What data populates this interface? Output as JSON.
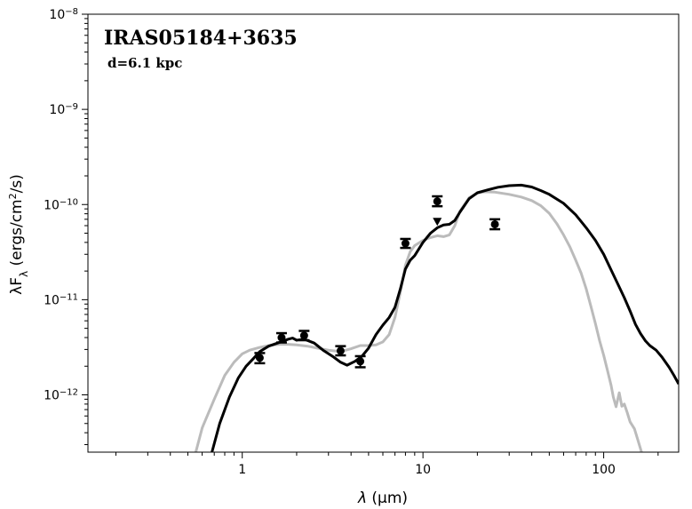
{
  "chart_data": {
    "type": "scatter",
    "title": "",
    "annotations": {
      "source_name": "IRAS05184+3635",
      "distance": "d=6.1 kpc"
    },
    "xlabel": {
      "prefix": "λ",
      "units": "(μm)"
    },
    "ylabel": {
      "prefix": "λF",
      "subscript": "λ",
      "units_open": "(ergs/cm",
      "units_sup": "2",
      "units_close": "/s)"
    },
    "xscale": "log",
    "yscale": "log",
    "xlim": [
      0.14,
      260
    ],
    "ylim": [
      2.5e-13,
      1e-08
    ],
    "x_ticks": [
      {
        "value": 1,
        "label": "1"
      },
      {
        "value": 10,
        "label": "10"
      },
      {
        "value": 100,
        "label": "100"
      }
    ],
    "y_ticks": [
      {
        "value": 1e-08,
        "base": "10",
        "exp": "−8"
      },
      {
        "value": 1e-09,
        "base": "10",
        "exp": "−9"
      },
      {
        "value": 1e-10,
        "base": "10",
        "exp": "−10"
      },
      {
        "value": 1e-11,
        "base": "10",
        "exp": "−11"
      },
      {
        "value": 1e-12,
        "base": "10",
        "exp": "−12"
      }
    ],
    "grid": false,
    "colors": {
      "best_fit": "#000000",
      "other_fit": "#bbbbbb",
      "points": "#000000"
    },
    "series": [
      {
        "kind": "line",
        "color": "#bbbbbb",
        "points": [
          [
            0.55,
            2.4e-13
          ],
          [
            0.6,
            4.5e-13
          ],
          [
            0.7,
            9e-13
          ],
          [
            0.8,
            1.6e-12
          ],
          [
            0.9,
            2.2e-12
          ],
          [
            1.0,
            2.7e-12
          ],
          [
            1.1,
            2.95e-12
          ],
          [
            1.25,
            3.15e-12
          ],
          [
            1.4,
            3.3e-12
          ],
          [
            1.6,
            3.4e-12
          ],
          [
            1.8,
            3.4e-12
          ],
          [
            2.0,
            3.35e-12
          ],
          [
            2.3,
            3.25e-12
          ],
          [
            2.6,
            3.1e-12
          ],
          [
            3.0,
            2.95e-12
          ],
          [
            3.5,
            2.85e-12
          ],
          [
            4.0,
            3.05e-12
          ],
          [
            4.5,
            3.3e-12
          ],
          [
            5.0,
            3.3e-12
          ],
          [
            5.5,
            3.35e-12
          ],
          [
            6.0,
            3.6e-12
          ],
          [
            6.5,
            4.3e-12
          ],
          [
            7.0,
            6.5e-12
          ],
          [
            7.5,
            1.2e-11
          ],
          [
            8.0,
            2.3e-11
          ],
          [
            8.5,
            3.2e-11
          ],
          [
            9.0,
            3.7e-11
          ],
          [
            10,
            4.2e-11
          ],
          [
            11,
            4.5e-11
          ],
          [
            12,
            4.7e-11
          ],
          [
            13,
            4.6e-11
          ],
          [
            14,
            4.8e-11
          ],
          [
            15,
            6e-11
          ],
          [
            16,
            8.5e-11
          ],
          [
            18,
            1.18e-10
          ],
          [
            20,
            1.32e-10
          ],
          [
            22,
            1.36e-10
          ],
          [
            25,
            1.35e-10
          ],
          [
            30,
            1.28e-10
          ],
          [
            35,
            1.2e-10
          ],
          [
            40,
            1.1e-10
          ],
          [
            45,
            9.7e-11
          ],
          [
            50,
            8.1e-11
          ],
          [
            55,
            6.3e-11
          ],
          [
            60,
            4.8e-11
          ],
          [
            65,
            3.6e-11
          ],
          [
            70,
            2.6e-11
          ],
          [
            75,
            1.9e-11
          ],
          [
            80,
            1.3e-11
          ],
          [
            85,
            8.5e-12
          ],
          [
            90,
            5.6e-12
          ],
          [
            95,
            3.7e-12
          ],
          [
            100,
            2.6e-12
          ],
          [
            105,
            1.8e-12
          ],
          [
            110,
            1.25e-12
          ],
          [
            113,
            9.5e-13
          ],
          [
            117,
            7.5e-13
          ],
          [
            122,
            1.05e-12
          ],
          [
            126,
            7.6e-13
          ],
          [
            130,
            8e-13
          ],
          [
            135,
            6.5e-13
          ],
          [
            140,
            5.2e-13
          ],
          [
            148,
            4.4e-13
          ],
          [
            155,
            3.3e-13
          ],
          [
            162,
            2.5e-13
          ]
        ]
      },
      {
        "kind": "line",
        "color": "#000000",
        "points": [
          [
            0.68,
            2.5e-13
          ],
          [
            0.75,
            5e-13
          ],
          [
            0.85,
            9.5e-13
          ],
          [
            0.95,
            1.5e-12
          ],
          [
            1.05,
            2e-12
          ],
          [
            1.15,
            2.4e-12
          ],
          [
            1.25,
            2.85e-12
          ],
          [
            1.4,
            3.25e-12
          ],
          [
            1.6,
            3.55e-12
          ],
          [
            1.8,
            3.85e-12
          ],
          [
            1.9,
            3.95e-12
          ],
          [
            2.0,
            3.75e-12
          ],
          [
            2.2,
            3.85e-12
          ],
          [
            2.5,
            3.5e-12
          ],
          [
            2.8,
            2.95e-12
          ],
          [
            3.2,
            2.5e-12
          ],
          [
            3.5,
            2.2e-12
          ],
          [
            3.8,
            2.05e-12
          ],
          [
            4.2,
            2.25e-12
          ],
          [
            4.6,
            2.55e-12
          ],
          [
            5.0,
            3.1e-12
          ],
          [
            5.5,
            4.3e-12
          ],
          [
            6.0,
            5.4e-12
          ],
          [
            6.5,
            6.5e-12
          ],
          [
            7.0,
            8.3e-12
          ],
          [
            7.5,
            1.3e-11
          ],
          [
            8.0,
            2.1e-11
          ],
          [
            8.5,
            2.6e-11
          ],
          [
            9.0,
            2.9e-11
          ],
          [
            10,
            4e-11
          ],
          [
            11,
            5e-11
          ],
          [
            12,
            5.7e-11
          ],
          [
            13,
            6.1e-11
          ],
          [
            14,
            6.2e-11
          ],
          [
            15,
            6.8e-11
          ],
          [
            16,
            8.3e-11
          ],
          [
            18,
            1.15e-10
          ],
          [
            20,
            1.33e-10
          ],
          [
            23,
            1.43e-10
          ],
          [
            26,
            1.52e-10
          ],
          [
            30,
            1.58e-10
          ],
          [
            35,
            1.6e-10
          ],
          [
            40,
            1.53e-10
          ],
          [
            45,
            1.4e-10
          ],
          [
            50,
            1.28e-10
          ],
          [
            60,
            1.03e-10
          ],
          [
            70,
            7.8e-11
          ],
          [
            80,
            5.7e-11
          ],
          [
            90,
            4.2e-11
          ],
          [
            100,
            3e-11
          ],
          [
            110,
            2.05e-11
          ],
          [
            120,
            1.45e-11
          ],
          [
            130,
            1.05e-11
          ],
          [
            140,
            7.6e-12
          ],
          [
            150,
            5.5e-12
          ],
          [
            160,
            4.4e-12
          ],
          [
            170,
            3.7e-12
          ],
          [
            180,
            3.3e-12
          ],
          [
            195,
            2.95e-12
          ],
          [
            210,
            2.5e-12
          ],
          [
            230,
            1.95e-12
          ],
          [
            245,
            1.6e-12
          ],
          [
            260,
            1.3e-12
          ]
        ]
      },
      {
        "kind": "errorbar",
        "color": "#000000",
        "points": [
          {
            "x": 1.25,
            "y": 2.45e-12,
            "ylo": 2.15e-12,
            "yhi": 2.75e-12
          },
          {
            "x": 1.65,
            "y": 4e-12,
            "ylo": 3.55e-12,
            "yhi": 4.45e-12
          },
          {
            "x": 2.2,
            "y": 4.2e-12,
            "ylo": 3.75e-12,
            "yhi": 4.7e-12
          },
          {
            "x": 3.5,
            "y": 2.9e-12,
            "ylo": 2.6e-12,
            "yhi": 3.25e-12
          },
          {
            "x": 4.5,
            "y": 2.25e-12,
            "ylo": 1.95e-12,
            "yhi": 2.55e-12
          },
          {
            "x": 8.0,
            "y": 3.9e-11,
            "ylo": 3.5e-11,
            "yhi": 4.35e-11
          },
          {
            "x": 12.0,
            "y": 1.08e-10,
            "ylo": 9.6e-11,
            "yhi": 1.22e-10
          },
          {
            "x": 25.0,
            "y": 6.2e-11,
            "ylo": 5.5e-11,
            "yhi": 7e-11
          }
        ]
      },
      {
        "kind": "upper_limit",
        "color": "#000000",
        "points": [
          {
            "x": 12.0,
            "y": 6.5e-11
          }
        ]
      }
    ]
  }
}
